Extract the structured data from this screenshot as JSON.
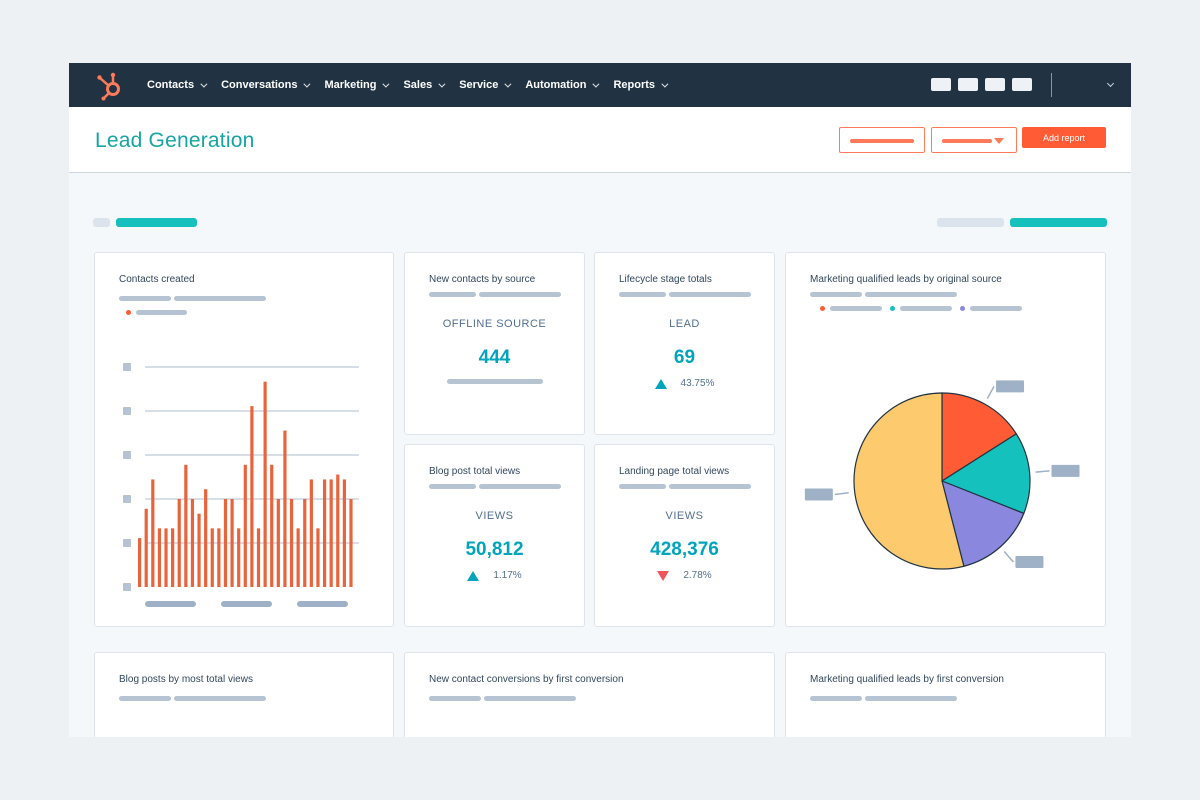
{
  "nav": {
    "items": [
      {
        "label": "Contacts"
      },
      {
        "label": "Conversations"
      },
      {
        "label": "Marketing"
      },
      {
        "label": "Sales"
      },
      {
        "label": "Service"
      },
      {
        "label": "Automation"
      },
      {
        "label": "Reports"
      }
    ]
  },
  "header": {
    "title": "Lead Generation",
    "add_report_label": "Add report"
  },
  "colors": {
    "nav_bg": "#213343",
    "accent": "#ff5c35",
    "teal": "#00a4bd",
    "bar": "#e8643c",
    "pie_orange": "#ff5c35",
    "pie_teal": "#15c1bc",
    "pie_purple": "#8a87de",
    "pie_yellow": "#fdcb6e"
  },
  "cards": {
    "contacts_created": {
      "title": "Contacts created"
    },
    "new_contacts_by_source": {
      "title": "New contacts by source",
      "label": "OFFLINE SOURCE",
      "value": "444"
    },
    "lifecycle_stage_totals": {
      "title": "Lifecycle stage totals",
      "label": "LEAD",
      "value": "69",
      "change": "43.75%",
      "direction": "up"
    },
    "mql_by_source": {
      "title": "Marketing qualified leads by original source"
    },
    "blog_post_total_views": {
      "title": "Blog post total views",
      "label": "VIEWS",
      "value": "50,812",
      "change": "1.17%",
      "direction": "up"
    },
    "landing_page_total_views": {
      "title": "Landing page total views",
      "label": "VIEWS",
      "value": "428,376",
      "change": "2.78%",
      "direction": "down"
    },
    "blog_posts_by_views": {
      "title": "Blog posts by most total views"
    },
    "new_contact_conversions": {
      "title": "New contact conversions by first conversion"
    },
    "mql_by_first_conversion": {
      "title": "Marketing qualified leads by first conversion"
    }
  },
  "chart_data": [
    {
      "type": "bar",
      "values": [
        10,
        16,
        22,
        12,
        12,
        12,
        18,
        25,
        18,
        15,
        20,
        12,
        12,
        18,
        18,
        12,
        25,
        37,
        12,
        42,
        25,
        18,
        32,
        18,
        12,
        18,
        22,
        12,
        22,
        22,
        23,
        22,
        18
      ],
      "ylim": [
        0,
        45
      ],
      "grid": true
    },
    {
      "type": "pie",
      "values": [
        16,
        15,
        15,
        54
      ],
      "colors": [
        "#ff5c35",
        "#15c1bc",
        "#8a87de",
        "#fdcb6e"
      ]
    }
  ]
}
